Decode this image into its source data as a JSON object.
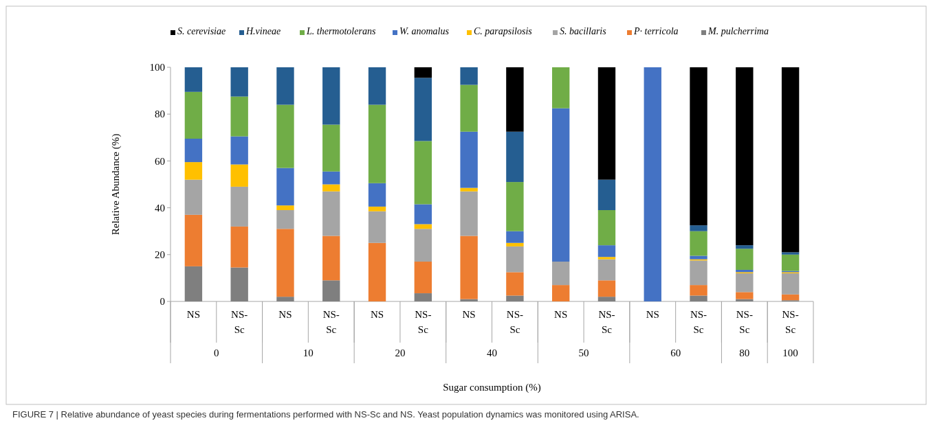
{
  "chart_data": {
    "type": "bar",
    "stacked": true,
    "ylabel": "Relative  Abundance  (%)",
    "xlabel": "Sugar consumption  (%)",
    "categories": [
      "NS",
      "NS-Sc",
      "NS",
      "NS-Sc",
      "NS",
      "NS-Sc",
      "NS",
      "NS-Sc",
      "NS",
      "NS-Sc",
      "NS",
      "NS-Sc",
      "NS-Sc",
      "NS-Sc"
    ],
    "ylim": [
      0,
      100
    ],
    "yticks": [
      0,
      20,
      40,
      60,
      80,
      100
    ],
    "legend": "top",
    "grid": false,
    "series": [
      {
        "name": "M. pulcherrima",
        "color": "#7f7f7f",
        "values": [
          15,
          14.5,
          2,
          9,
          0,
          3.5,
          1,
          2.5,
          0,
          2,
          0,
          2.5,
          1,
          0.5
        ]
      },
      {
        "name": "P· terricola",
        "color": "#ed7d31",
        "values": [
          22,
          17.5,
          29,
          19,
          25,
          13.5,
          27,
          10,
          7,
          7,
          0,
          4.5,
          3,
          2.5
        ]
      },
      {
        "name": "S. bacillaris",
        "color": "#a5a5a5",
        "values": [
          15,
          17,
          8,
          19,
          13.5,
          14,
          19,
          11,
          10,
          9,
          0,
          10.5,
          8,
          9
        ]
      },
      {
        "name": "C. parapsilosis",
        "color": "#ffc000",
        "values": [
          7.5,
          9.5,
          2,
          3,
          2,
          2,
          1.5,
          1.5,
          0,
          1,
          0,
          0.5,
          0.5,
          0.5
        ]
      },
      {
        "name": "W. anomalus",
        "color": "#4472c4",
        "values": [
          10,
          12,
          16,
          5.5,
          10,
          8.5,
          24,
          5,
          65.5,
          5,
          100,
          1.5,
          1,
          0.5
        ]
      },
      {
        "name": "L. thermotolerans",
        "color": "#70ad47",
        "values": [
          20,
          17,
          27,
          20,
          33.5,
          27,
          20,
          21,
          17.5,
          15,
          0,
          10.5,
          9,
          7
        ]
      },
      {
        "name": "H.vineae",
        "color": "#255e91",
        "values": [
          10.5,
          12.5,
          16,
          24.5,
          16,
          27,
          7.5,
          21.5,
          0,
          13,
          0,
          2.5,
          1.5,
          1
        ]
      },
      {
        "name": "S. cerevisiae",
        "color": "#000000",
        "values": [
          0,
          0,
          0,
          0,
          0,
          4.5,
          0,
          27.5,
          0,
          48,
          0,
          67.5,
          76,
          79
        ]
      }
    ],
    "annotations": [
      "0",
      "10",
      "20",
      "40",
      "50",
      "60",
      "80",
      "100",
      "FIGURE 7 | Relative abundance of yeast species during fermentations performed with NS-Sc and NS. Yeast population dynamics was monitored using ARISA."
    ]
  }
}
